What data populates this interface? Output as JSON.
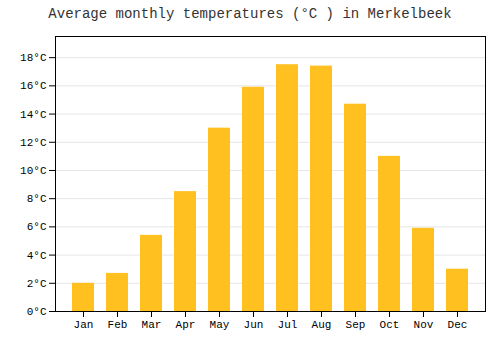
{
  "chart_data": {
    "type": "bar",
    "title": "Average monthly temperatures (°C ) in Merkelbeek",
    "categories": [
      "Jan",
      "Feb",
      "Mar",
      "Apr",
      "May",
      "Jun",
      "Jul",
      "Aug",
      "Sep",
      "Oct",
      "Nov",
      "Dec"
    ],
    "values": [
      2.0,
      2.7,
      5.4,
      8.5,
      13.0,
      15.9,
      17.5,
      17.4,
      14.7,
      11.0,
      5.9,
      3.0
    ],
    "color": "#FFC020",
    "ylim": [
      0,
      19.5
    ],
    "yticks": [
      {
        "value": 0,
        "label": "0°C"
      },
      {
        "value": 2,
        "label": "2°C"
      },
      {
        "value": 4,
        "label": "4°C"
      },
      {
        "value": 6,
        "label": "6°C"
      },
      {
        "value": 8,
        "label": "8°C"
      },
      {
        "value": 10,
        "label": "10°C"
      },
      {
        "value": 12,
        "label": "12°C"
      },
      {
        "value": 14,
        "label": "14°C"
      },
      {
        "value": 16,
        "label": "16°C"
      },
      {
        "value": 18,
        "label": "18°C"
      }
    ],
    "grid": true
  }
}
